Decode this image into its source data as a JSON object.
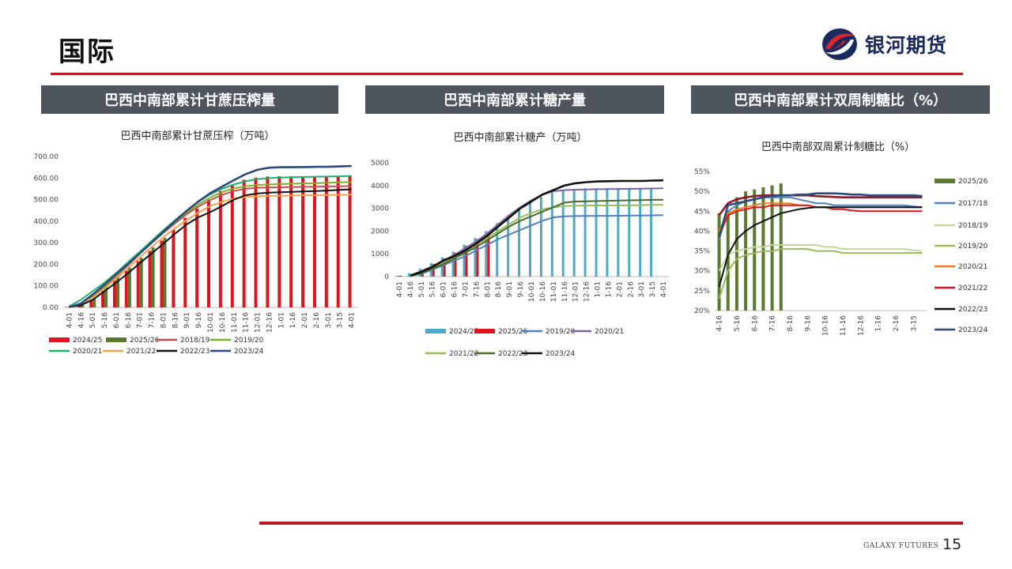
{
  "page": {
    "title": "国际",
    "brand": "银河期货",
    "footer": "GALAXY FUTURES",
    "page_number": "15"
  },
  "colors": {
    "accent": "#b81c22",
    "header_bg": "#4e555d",
    "brand_blue": "#1a2a5e"
  },
  "panels": [
    {
      "header": "巴西中南部累计甘蔗压榨量"
    },
    {
      "header": "巴西中南部累计糖产量"
    },
    {
      "header": "巴西中南部累计双周制糖比（%）"
    }
  ],
  "chart_data": [
    {
      "type": "bar",
      "title": "巴西中南部累计甘蔗压榨（万吨）",
      "categories": [
        "4-01",
        "4-16",
        "5-01",
        "5-16",
        "6-01",
        "6-16",
        "7-01",
        "7-16",
        "8-01",
        "8-16",
        "9-01",
        "9-16",
        "10-01",
        "10-16",
        "11-01",
        "11-16",
        "12-01",
        "12-16",
        "1-01",
        "1-16",
        "2-01",
        "2-16",
        "3-01",
        "3-15",
        "4-01"
      ],
      "ylim": [
        0,
        700
      ],
      "yticks": [
        "0.00",
        "100.00",
        "200.00",
        "300.00",
        "400.00",
        "500.00",
        "600.00",
        "700.00"
      ],
      "bar_series": [
        {
          "name": "2024/25",
          "color": "#e0141e",
          "values": [
            2,
            10,
            32,
            78,
            125,
            170,
            215,
            262,
            310,
            360,
            415,
            458,
            500,
            540,
            570,
            592,
            602,
            607,
            608,
            608,
            608,
            608,
            608,
            609,
            610
          ]
        },
        {
          "name": "2025/26",
          "color": "#5a7a32",
          "values": [
            2,
            10,
            40,
            95,
            140,
            185,
            230,
            278,
            322,
            null,
            null,
            null,
            null,
            null,
            null,
            null,
            null,
            null,
            null,
            null,
            null,
            null,
            null,
            null,
            null
          ]
        }
      ],
      "line_series": [
        {
          "name": "2018/19",
          "color": "#c0504d",
          "values": [
            2,
            15,
            50,
            95,
            145,
            195,
            248,
            298,
            345,
            390,
            432,
            468,
            498,
            522,
            540,
            550,
            555,
            556,
            557,
            558,
            559,
            560,
            561,
            562,
            563
          ]
        },
        {
          "name": "2019/20",
          "color": "#7fb02b",
          "values": [
            2,
            18,
            55,
            100,
            150,
            200,
            252,
            302,
            352,
            398,
            440,
            478,
            510,
            535,
            552,
            562,
            568,
            570,
            572,
            574,
            575,
            576,
            578,
            580,
            582
          ]
        },
        {
          "name": "2020/21",
          "color": "#1db36e",
          "values": [
            5,
            35,
            75,
            115,
            160,
            210,
            258,
            308,
            358,
            405,
            448,
            490,
            525,
            550,
            570,
            585,
            595,
            600,
            602,
            604,
            605,
            606,
            607,
            608,
            610
          ]
        },
        {
          "name": "2021/22",
          "color": "#f6a04d",
          "values": [
            2,
            15,
            45,
            88,
            135,
            182,
            232,
            280,
            325,
            368,
            405,
            440,
            470,
            490,
            505,
            512,
            515,
            517,
            518,
            519,
            520,
            520,
            521,
            522,
            523
          ]
        },
        {
          "name": "2022/23",
          "color": "#111111",
          "values": [
            2,
            10,
            35,
            75,
            115,
            158,
            205,
            250,
            295,
            342,
            385,
            418,
            442,
            470,
            500,
            520,
            528,
            532,
            534,
            536,
            538,
            540,
            542,
            545,
            548
          ]
        },
        {
          "name": "2023/24",
          "color": "#2c4a7c",
          "values": [
            2,
            18,
            60,
            105,
            155,
            200,
            250,
            300,
            350,
            400,
            448,
            492,
            530,
            560,
            590,
            618,
            638,
            648,
            650,
            650,
            651,
            652,
            652,
            654,
            656
          ]
        }
      ]
    },
    {
      "type": "bar",
      "title": "巴西中南部累计糖产（万吨）",
      "categories": [
        "4-01",
        "4-16",
        "5-01",
        "5-16",
        "6-01",
        "6-16",
        "7-01",
        "7-16",
        "8-01",
        "8-16",
        "9-01",
        "9-16",
        "10-01",
        "10-16",
        "11-01",
        "11-16",
        "12-01",
        "12-16",
        "1-01",
        "1-16",
        "2-01",
        "2-16",
        "3-01",
        "3-15",
        "4-01"
      ],
      "ylim": [
        0,
        5000
      ],
      "yticks": [
        "0",
        "1000",
        "2000",
        "3000",
        "4000",
        "5000"
      ],
      "bar_series": [
        {
          "name": "2024/25",
          "color": "#4bacc6",
          "values": [
            50,
            150,
            350,
            600,
            850,
            1100,
            1400,
            1700,
            2000,
            2350,
            2700,
            3000,
            3250,
            3500,
            3700,
            3800,
            3850,
            3880,
            3890,
            3895,
            3900,
            3900,
            3900,
            3900,
            null
          ]
        },
        {
          "name": "2025/26",
          "color": "#e0141e",
          "values": [
            40,
            120,
            300,
            550,
            800,
            1050,
            1350,
            1650,
            1950,
            null,
            null,
            null,
            null,
            null,
            null,
            null,
            null,
            null,
            null,
            null,
            null,
            null,
            null,
            null,
            null
          ]
        }
      ],
      "line_series": [
        {
          "name": "2019/20",
          "color": "#4f81bd",
          "values": [
            null,
            20,
            120,
            300,
            500,
            700,
            900,
            1150,
            1400,
            1650,
            1850,
            2050,
            2250,
            2450,
            2600,
            2650,
            2660,
            2665,
            2670,
            2670,
            2675,
            2680,
            2680,
            2690,
            2700
          ]
        },
        {
          "name": "2020/21",
          "color": "#8064a2",
          "values": [
            null,
            50,
            250,
            450,
            700,
            950,
            1250,
            1550,
            1900,
            2300,
            2700,
            3050,
            3350,
            3600,
            3750,
            3800,
            3820,
            3830,
            3840,
            3845,
            3850,
            3855,
            3860,
            3870,
            3880
          ]
        },
        {
          "name": "2021/22",
          "color": "#9bbb59",
          "values": [
            null,
            30,
            150,
            350,
            600,
            850,
            1100,
            1400,
            1700,
            2000,
            2300,
            2600,
            2800,
            2950,
            3050,
            3100,
            3110,
            3120,
            3125,
            3130,
            3130,
            3135,
            3140,
            3150,
            3150
          ]
        },
        {
          "name": "2022/23",
          "color": "#4a6b2c",
          "values": [
            null,
            30,
            150,
            350,
            550,
            800,
            1050,
            1300,
            1600,
            1900,
            2200,
            2450,
            2650,
            2850,
            3050,
            3250,
            3300,
            3310,
            3320,
            3330,
            3340,
            3350,
            3360,
            3370,
            3380
          ]
        },
        {
          "name": "2023/24",
          "color": "#111111",
          "values": [
            null,
            40,
            200,
            420,
            700,
            900,
            1150,
            1450,
            1800,
            2200,
            2600,
            3000,
            3300,
            3600,
            3800,
            4000,
            4100,
            4150,
            4180,
            4190,
            4200,
            4200,
            4200,
            4220,
            4230
          ]
        }
      ]
    },
    {
      "type": "bar",
      "title": "巴西中南部双周累计制糖比（%）",
      "categories": [
        "4-16",
        "5-01",
        "5-16",
        "6-01",
        "6-16",
        "7-01",
        "7-16",
        "8-01",
        "8-16",
        "9-01",
        "9-16",
        "10-01",
        "10-16",
        "11-01",
        "11-16",
        "12-01",
        "12-16",
        "1-01",
        "1-16",
        "2-01",
        "2-16",
        "3-01",
        "3-15",
        "4-01"
      ],
      "xtick_labels": [
        "4-16",
        "5-16",
        "6-16",
        "7-16",
        "8-16",
        "9-16",
        "10-16",
        "11-16",
        "12-16",
        "1-16",
        "2-16",
        "3-15"
      ],
      "ylim": [
        20,
        55
      ],
      "yticks": [
        "20%",
        "25%",
        "30%",
        "35%",
        "40%",
        "45%",
        "50%",
        "55%"
      ],
      "bar_series": [
        {
          "name": "2025/26",
          "color": "#5a7a32",
          "values": [
            44.5,
            45.0,
            48.5,
            50.0,
            50.5,
            51.0,
            51.5,
            52.0,
            null,
            null,
            null,
            null,
            null,
            null,
            null,
            null,
            null,
            null,
            null,
            null,
            null,
            null,
            null,
            null
          ]
        }
      ],
      "line_series": [
        {
          "name": "2017/18",
          "color": "#4f81bd",
          "values": [
            38.0,
            45.0,
            46.5,
            47.5,
            48.0,
            48.5,
            48.5,
            48.5,
            48.5,
            48.0,
            47.5,
            47.0,
            47.0,
            46.5,
            46.5,
            46.5,
            46.5,
            46.5,
            46.5,
            46.5,
            46.5,
            46.5,
            46.2,
            46.0
          ]
        },
        {
          "name": "2018/19",
          "color": "#c4d79b",
          "values": [
            30.0,
            34.0,
            35.0,
            35.5,
            36.0,
            36.0,
            36.5,
            36.5,
            36.5,
            36.5,
            36.5,
            36.5,
            36.0,
            36.0,
            35.5,
            35.5,
            35.5,
            35.5,
            35.5,
            35.5,
            35.5,
            35.5,
            35.2,
            35.0
          ]
        },
        {
          "name": "2019/20",
          "color": "#9bbb59",
          "values": [
            23.0,
            30.0,
            33.0,
            34.0,
            34.5,
            35.0,
            35.0,
            35.5,
            35.5,
            35.5,
            35.5,
            35.0,
            35.0,
            35.0,
            34.5,
            34.5,
            34.5,
            34.5,
            34.5,
            34.5,
            34.5,
            34.5,
            34.5,
            34.5
          ]
        },
        {
          "name": "2020/21",
          "color": "#f07d22",
          "values": [
            40.0,
            44.5,
            45.5,
            46.0,
            46.5,
            47.0,
            47.0,
            47.0,
            47.0,
            46.5,
            46.5,
            46.0,
            46.0,
            46.0,
            46.0,
            46.0,
            46.0,
            46.0,
            46.0,
            46.0,
            46.0,
            46.0,
            46.0,
            46.0
          ]
        },
        {
          "name": "2021/22",
          "color": "#e0141e",
          "values": [
            39.0,
            44.0,
            45.0,
            45.5,
            46.0,
            46.0,
            46.5,
            46.5,
            46.5,
            46.5,
            46.5,
            46.0,
            46.0,
            45.5,
            45.5,
            45.2,
            45.0,
            45.0,
            45.0,
            45.0,
            45.0,
            45.0,
            45.0,
            45.0
          ]
        },
        {
          "name": "2022/23",
          "color": "#111111",
          "values": [
            26.0,
            34.0,
            38.0,
            40.0,
            41.5,
            42.5,
            43.5,
            44.5,
            45.0,
            45.5,
            45.8,
            46.0,
            46.0,
            46.0,
            46.0,
            46.0,
            46.0,
            46.0,
            46.0,
            46.0,
            46.0,
            46.0,
            46.0,
            46.0
          ]
        },
        {
          "name": "2023/24",
          "color": "#8b1a2a",
          "values": [
            44.0,
            47.0,
            48.0,
            48.5,
            48.8,
            49.0,
            49.0,
            49.0,
            49.0,
            49.0,
            49.0,
            48.8,
            48.7,
            48.6,
            48.5,
            48.5,
            48.5,
            48.5,
            48.5,
            48.5,
            48.5,
            48.5,
            48.5,
            48.5
          ]
        },
        {
          "name": "2023/24",
          "color": "#2c4a7c",
          "values": [
            38.5,
            46.5,
            47.0,
            47.5,
            48.0,
            48.5,
            48.8,
            49.0,
            49.0,
            49.2,
            49.2,
            49.5,
            49.5,
            49.5,
            49.4,
            49.2,
            49.2,
            49.0,
            49.0,
            49.0,
            49.0,
            49.0,
            49.0,
            48.8
          ]
        }
      ],
      "legend_entries": [
        {
          "name": "2025/26",
          "color": "#5a7a32",
          "kind": "bar"
        },
        {
          "name": "2017/18",
          "color": "#4f81bd",
          "kind": "line"
        },
        {
          "name": "2018/19",
          "color": "#c4d79b",
          "kind": "line"
        },
        {
          "name": "2019/20",
          "color": "#9bbb59",
          "kind": "line"
        },
        {
          "name": "2020/21",
          "color": "#f07d22",
          "kind": "line"
        },
        {
          "name": "2021/22",
          "color": "#e0141e",
          "kind": "line"
        },
        {
          "name": "2022/23",
          "color": "#111111",
          "kind": "line"
        },
        {
          "name": "2023/24",
          "color": "#2c4a7c",
          "kind": "line"
        }
      ]
    }
  ]
}
